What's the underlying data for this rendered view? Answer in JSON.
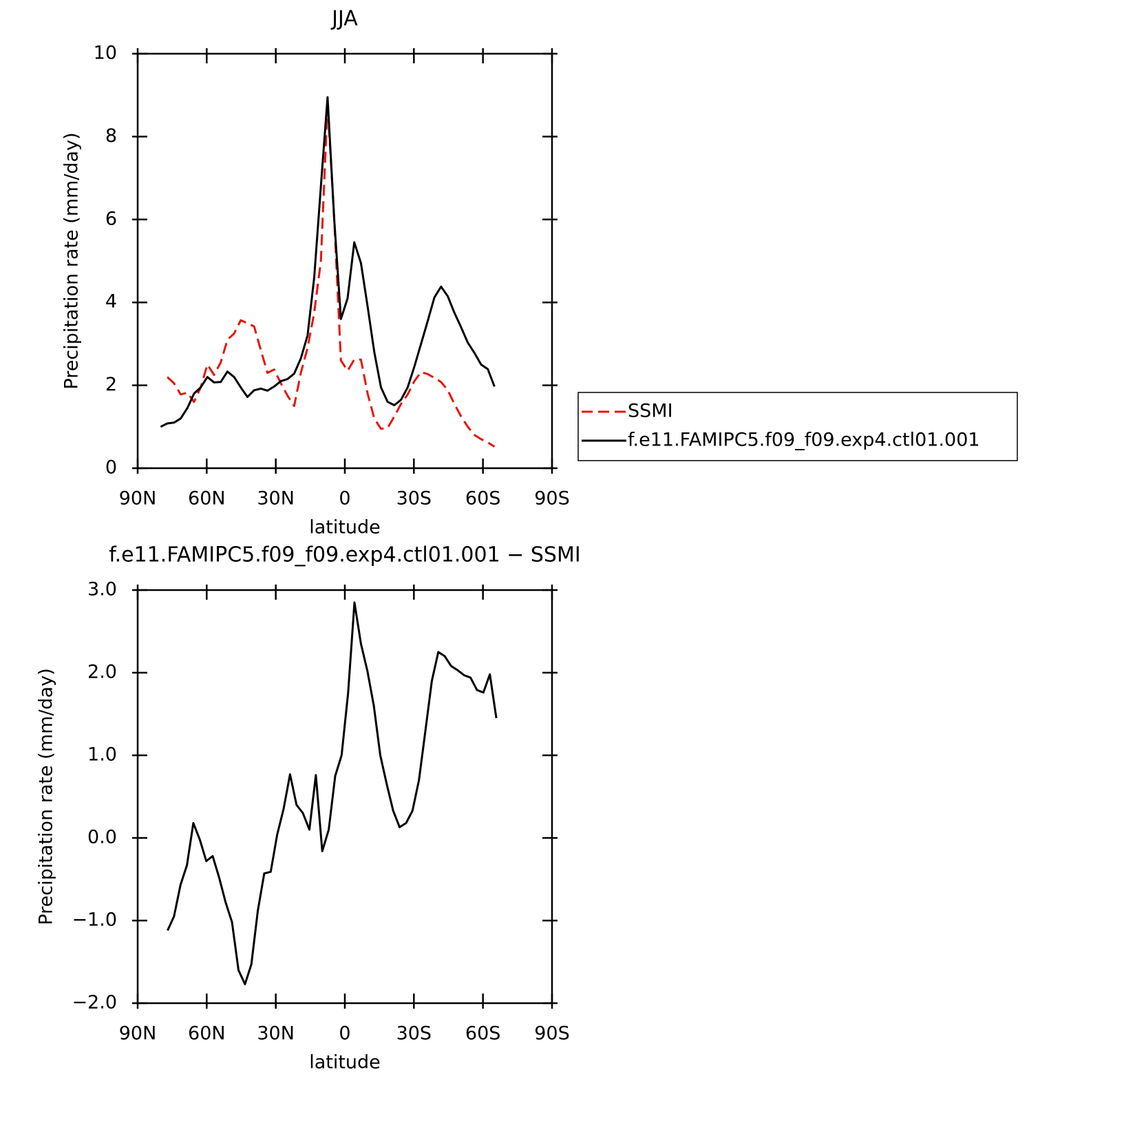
{
  "chart_data": [
    {
      "type": "line",
      "title": "JJA",
      "x_label": "latitude",
      "y_label": "Precipitation rate (mm/day)",
      "xlim": [
        90,
        -90
      ],
      "xticks": [
        {
          "value": 90,
          "label": "90N"
        },
        {
          "value": 60,
          "label": "60N"
        },
        {
          "value": 30,
          "label": "30N"
        },
        0,
        {
          "value": -30,
          "label": "30S"
        },
        {
          "value": -60,
          "label": "60S"
        },
        {
          "value": -90,
          "label": "90S"
        }
      ],
      "ylim": [
        0,
        10
      ],
      "yticks": [
        0,
        2,
        4,
        6,
        8,
        10
      ],
      "legend": "right",
      "x": [
        80,
        77.1,
        74.2,
        71.3,
        68.4,
        65.5,
        62.6,
        59.7,
        56.8,
        53.9,
        51,
        48.1,
        45.2,
        42.3,
        39.4,
        36.5,
        33.6,
        30.7,
        27.8,
        24.9,
        22,
        19.1,
        16.2,
        13.3,
        10.4,
        7.5,
        4.6,
        1.7,
        -1.2,
        -4.1,
        -7,
        -9.9,
        -12.8,
        -15.7,
        -18.6,
        -21.5,
        -24.4,
        -27.3,
        -30.2,
        -33.1,
        -36,
        -38.9,
        -41.8,
        -44.7,
        -47.6,
        -50.5,
        -53.4,
        -56.3,
        -59.2,
        -62.1,
        -65
      ],
      "series": [
        {
          "name": "SSMI",
          "color": "#e8140c",
          "style": "dashed",
          "values": [
            null,
            2.2,
            2.05,
            1.78,
            1.82,
            1.6,
            1.95,
            2.5,
            2.25,
            2.55,
            3.1,
            3.25,
            3.57,
            3.5,
            3.42,
            2.85,
            2.3,
            2.38,
            2.05,
            1.75,
            1.5,
            2.3,
            2.9,
            3.75,
            5.0,
            8.8,
            6.0,
            2.6,
            2.35,
            2.62,
            2.62,
            1.8,
            1.2,
            0.95,
            0.97,
            1.25,
            1.55,
            1.78,
            2.1,
            2.32,
            2.27,
            2.18,
            2.08,
            1.88,
            1.55,
            1.25,
            1.0,
            0.8,
            0.7,
            0.62,
            0.52
          ]
        },
        {
          "name": "f.e11.FAMIPC5.f09_f09.exp4.ctl01.001",
          "color": "#000000",
          "style": "solid",
          "values": [
            1.0,
            1.08,
            1.1,
            1.2,
            1.45,
            1.8,
            1.95,
            2.2,
            2.07,
            2.08,
            2.33,
            2.2,
            1.95,
            1.72,
            1.88,
            1.92,
            1.87,
            1.97,
            2.1,
            2.15,
            2.28,
            2.65,
            3.2,
            4.6,
            6.8,
            8.95,
            6.0,
            3.6,
            4.1,
            5.45,
            4.95,
            3.9,
            2.8,
            1.95,
            1.6,
            1.52,
            1.65,
            1.95,
            2.45,
            3.0,
            3.55,
            4.12,
            4.38,
            4.15,
            3.75,
            3.4,
            3.03,
            2.78,
            2.5,
            2.39,
            1.97
          ]
        }
      ]
    },
    {
      "type": "line",
      "title": "f.e11.FAMIPC5.f09_f09.exp4.ctl01.001 − SSMI",
      "x_label": "latitude",
      "y_label": "Precipitation rate (mm/day)",
      "xlim": [
        90,
        -90
      ],
      "xticks": [
        {
          "value": 90,
          "label": "90N"
        },
        {
          "value": 60,
          "label": "60N"
        },
        {
          "value": 30,
          "label": "30N"
        },
        0,
        {
          "value": -30,
          "label": "30S"
        },
        {
          "value": -60,
          "label": "60S"
        },
        {
          "value": -90,
          "label": "90S"
        }
      ],
      "ylim": [
        -2,
        3
      ],
      "yticks": [
        {
          "value": -2,
          "label": "−2.0"
        },
        {
          "value": -1,
          "label": "−1.0"
        },
        {
          "value": 0,
          "label": "0.0"
        },
        {
          "value": 1,
          "label": "1.0"
        },
        {
          "value": 2,
          "label": "2.0"
        },
        {
          "value": 3,
          "label": "3.0"
        }
      ],
      "x": [
        77,
        74.2,
        71.4,
        68.6,
        65.8,
        63,
        60.2,
        57.4,
        54.6,
        51.8,
        49,
        46.2,
        43.4,
        40.6,
        37.8,
        35,
        32.2,
        29.4,
        26.6,
        23.8,
        21,
        18.2,
        15.4,
        12.6,
        9.8,
        7,
        4.2,
        1.4,
        -1.4,
        -4.2,
        -7,
        -9.8,
        -12.6,
        -15.4,
        -18.2,
        -21,
        -23.8,
        -26.6,
        -29.4,
        -32.2,
        -35,
        -37.8,
        -40.6,
        -43.4,
        -46.2,
        -49,
        -51.8,
        -54.6,
        -57.4,
        -60.2,
        -63,
        -65.8
      ],
      "series": [
        {
          "color": "#000000",
          "style": "solid",
          "values": [
            -1.12,
            -0.95,
            -0.57,
            -0.33,
            0.18,
            -0.02,
            -0.28,
            -0.22,
            -0.48,
            -0.78,
            -1.02,
            -1.6,
            -1.77,
            -1.53,
            -0.88,
            -0.43,
            -0.41,
            0.04,
            0.35,
            0.77,
            0.4,
            0.3,
            0.1,
            0.76,
            -0.16,
            0.1,
            0.75,
            1.0,
            1.75,
            2.85,
            2.35,
            2.02,
            1.6,
            1.0,
            0.65,
            0.33,
            0.13,
            0.18,
            0.33,
            0.7,
            1.3,
            1.9,
            2.25,
            2.2,
            2.08,
            2.03,
            1.97,
            1.94,
            1.79,
            1.76,
            1.98,
            1.45
          ]
        }
      ]
    }
  ]
}
